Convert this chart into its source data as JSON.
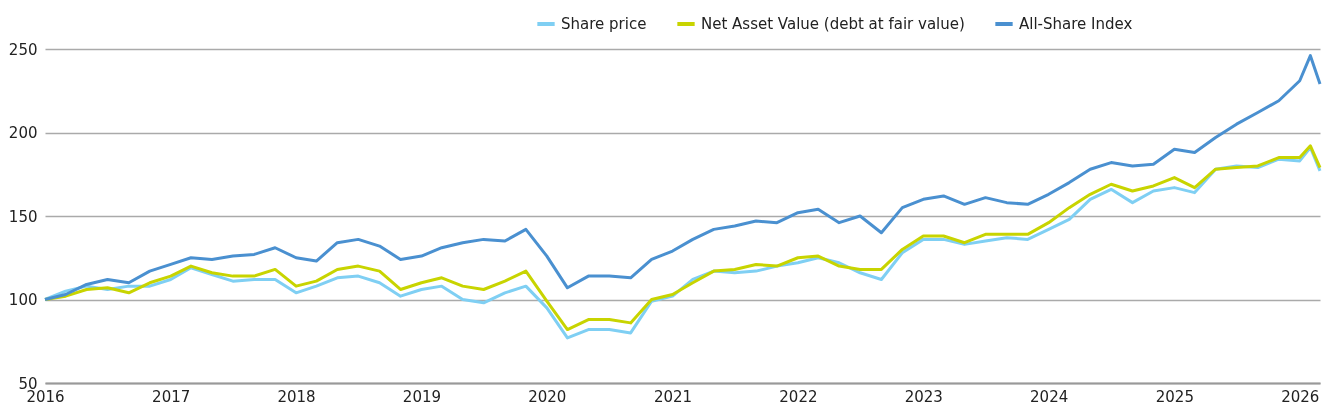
{
  "chart_data": {
    "type": "line",
    "x": [
      "2016-01",
      "2016-03",
      "2016-05",
      "2016-07",
      "2016-09",
      "2016-11",
      "2017-01",
      "2017-03",
      "2017-05",
      "2017-07",
      "2017-09",
      "2017-11",
      "2018-01",
      "2018-03",
      "2018-05",
      "2018-07",
      "2018-09",
      "2018-11",
      "2019-01",
      "2019-03",
      "2019-05",
      "2019-07",
      "2019-09",
      "2019-11",
      "2020-01",
      "2020-03",
      "2020-05",
      "2020-07",
      "2020-09",
      "2020-11",
      "2021-01",
      "2021-03",
      "2021-05",
      "2021-07",
      "2021-09",
      "2021-11",
      "2022-01",
      "2022-03",
      "2022-05",
      "2022-07",
      "2022-09",
      "2022-11",
      "2023-01",
      "2023-03",
      "2023-05",
      "2023-07",
      "2023-09",
      "2023-11",
      "2024-01",
      "2024-03",
      "2024-05",
      "2024-07",
      "2024-09",
      "2024-11",
      "2025-01",
      "2025-03",
      "2025-05",
      "2025-07",
      "2025-09",
      "2025-11",
      "2026-01",
      "2026-02",
      "2026-03"
    ],
    "series": [
      {
        "name": "Share price",
        "color": "#7fcff3",
        "values": [
          100,
          105,
          108,
          106,
          108,
          108,
          112,
          119,
          115,
          111,
          112,
          112,
          104,
          108,
          113,
          114,
          110,
          102,
          106,
          108,
          100,
          98,
          104,
          108,
          95,
          77,
          82,
          82,
          80,
          99,
          102,
          112,
          117,
          116,
          117,
          120,
          122,
          125,
          122,
          116,
          112,
          128,
          136,
          136,
          133,
          135,
          137,
          136,
          142,
          148,
          160,
          166,
          158,
          165,
          167,
          164,
          178,
          180,
          179,
          184,
          183,
          191,
          177
        ]
      },
      {
        "name": "Net Asset Value (debt at fair value)",
        "color": "#c8d400",
        "values": [
          100,
          102,
          106,
          107,
          104,
          110,
          114,
          120,
          116,
          114,
          114,
          118,
          108,
          111,
          118,
          120,
          117,
          106,
          110,
          113,
          108,
          106,
          111,
          117,
          99,
          82,
          88,
          88,
          86,
          100,
          103,
          110,
          117,
          118,
          121,
          120,
          125,
          126,
          120,
          118,
          118,
          130,
          138,
          138,
          134,
          139,
          139,
          139,
          146,
          155,
          163,
          169,
          165,
          168,
          173,
          167,
          178,
          179,
          180,
          185,
          185,
          192,
          179
        ]
      },
      {
        "name": "All-Share Index",
        "color": "#4a90d0",
        "values": [
          100,
          103,
          109,
          112,
          110,
          117,
          121,
          125,
          124,
          126,
          127,
          131,
          125,
          123,
          134,
          136,
          132,
          124,
          126,
          131,
          134,
          136,
          135,
          142,
          126,
          107,
          114,
          114,
          113,
          124,
          129,
          136,
          142,
          144,
          147,
          146,
          152,
          154,
          146,
          150,
          140,
          155,
          160,
          162,
          157,
          161,
          158,
          157,
          163,
          170,
          178,
          182,
          180,
          181,
          190,
          188,
          197,
          205,
          212,
          219,
          231,
          246,
          229
        ]
      }
    ],
    "xlim": [
      "2016-01",
      "2026-03"
    ],
    "xticks": [
      "2016",
      "2017",
      "2018",
      "2019",
      "2020",
      "2021",
      "2022",
      "2023",
      "2024",
      "2025",
      "2026"
    ],
    "ylim": [
      50,
      250
    ],
    "yticks": [
      50,
      100,
      150,
      200,
      250
    ],
    "grid": "y",
    "legend": "top right",
    "line_style": "solid"
  }
}
